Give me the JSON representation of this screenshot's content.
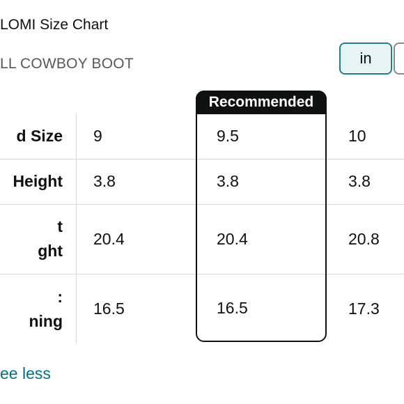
{
  "header": {
    "title": "LOMI Size Chart",
    "subtitle": "LL COWBOY BOOT"
  },
  "unit_toggle": {
    "selected_label": "in"
  },
  "table": {
    "recommended_label": "Recommended",
    "rows": [
      {
        "label": "d Size",
        "values": [
          "9",
          "9.5",
          "10"
        ]
      },
      {
        "label": "Height",
        "values": [
          "3.8",
          "3.8",
          "3.8"
        ]
      },
      {
        "label_lines": [
          "t",
          "ght"
        ],
        "values": [
          "20.4",
          "20.4",
          "20.8"
        ]
      },
      {
        "label_lines": [
          ":",
          "ning"
        ],
        "values": [
          "16.5",
          "16.5",
          "17.3"
        ]
      }
    ]
  },
  "footer": {
    "see_less_label": "ee less"
  },
  "colors": {
    "accent": "#1a7f8e",
    "link": "#007185",
    "border": "#d5d9d9",
    "recommended": "#0f1111"
  }
}
